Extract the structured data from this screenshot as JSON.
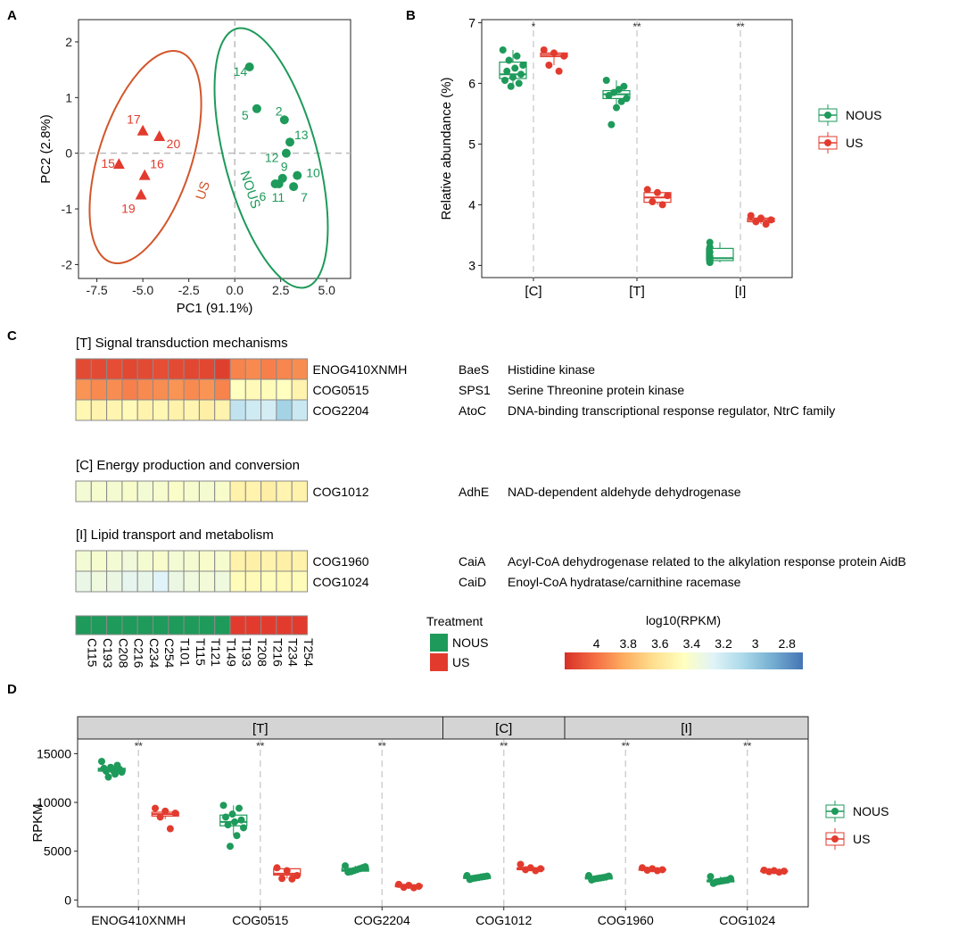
{
  "panel_labels": {
    "a": "A",
    "b": "B",
    "c": "C",
    "d": "D"
  },
  "colors": {
    "nous": "#1e9a5a",
    "us": "#e23b2e",
    "us_ellipse": "#d2562a",
    "ref": "#bbbbbb",
    "strip": "#d4d4d4"
  },
  "chart_data": [
    {
      "id": "A",
      "type": "scatter",
      "xlabel": "PC1 (91.1%)",
      "ylabel": "PC2 (2.8%)",
      "xlim": [
        -8.5,
        6.3
      ],
      "ylim": [
        -2.25,
        2.4
      ],
      "xticks": [
        -7.5,
        -5.0,
        -2.5,
        0.0,
        2.5,
        5.0
      ],
      "xtick_labels": [
        "-7.5",
        "-5.0",
        "-2.5",
        "0.0",
        "2.5",
        "5.0"
      ],
      "yticks": [
        -2,
        -1,
        0,
        1,
        2
      ],
      "ytick_labels": [
        "-2",
        "-1",
        "0",
        "1",
        "2"
      ],
      "groups": [
        {
          "name": "NOUS",
          "ellipse_label": "NOUS",
          "points": [
            {
              "label": "14",
              "x": 0.8,
              "y": 1.55
            },
            {
              "label": "5",
              "x": 1.2,
              "y": 0.8
            },
            {
              "label": "2",
              "x": 2.7,
              "y": 0.6
            },
            {
              "label": "13",
              "x": 3.0,
              "y": 0.2
            },
            {
              "label": "12",
              "x": 2.8,
              "y": 0.0
            },
            {
              "label": "10",
              "x": 3.4,
              "y": -0.4
            },
            {
              "label": "9",
              "x": 2.6,
              "y": -0.45
            },
            {
              "label": "6",
              "x": 2.2,
              "y": -0.55
            },
            {
              "label": "11",
              "x": 2.4,
              "y": -0.55
            },
            {
              "label": "7",
              "x": 3.2,
              "y": -0.6
            }
          ]
        },
        {
          "name": "US",
          "ellipse_label": "US",
          "points": [
            {
              "label": "17",
              "x": -5.0,
              "y": 0.4
            },
            {
              "label": "20",
              "x": -4.1,
              "y": 0.3
            },
            {
              "label": "15",
              "x": -6.3,
              "y": -0.2
            },
            {
              "label": "16",
              "x": -4.9,
              "y": -0.4
            },
            {
              "label": "19",
              "x": -5.1,
              "y": -0.75
            }
          ]
        }
      ]
    },
    {
      "id": "B",
      "type": "box",
      "ylabel": "Relative abundance (%)",
      "ylim": [
        2.8,
        7.05
      ],
      "yticks": [
        3,
        4,
        5,
        6,
        7
      ],
      "ytick_labels": [
        "3",
        "4",
        "5",
        "6",
        "7"
      ],
      "categories": [
        "[C]",
        "[T]",
        "[I]"
      ],
      "significance": [
        "*",
        "**",
        "**"
      ],
      "legend": [
        "NOUS",
        "US"
      ],
      "series": [
        {
          "name": "NOUS",
          "boxes": [
            {
              "q1": 6.08,
              "median": 6.15,
              "q3": 6.35,
              "min": 5.95,
              "max": 6.55,
              "points": [
                6.55,
                6.45,
                6.38,
                6.3,
                6.25,
                6.2,
                6.15,
                6.1,
                6.05,
                6.0,
                5.95
              ]
            },
            {
              "q1": 5.75,
              "median": 5.82,
              "q3": 5.88,
              "min": 5.55,
              "max": 6.05,
              "points": [
                6.05,
                5.95,
                5.9,
                5.85,
                5.8,
                5.75,
                5.7,
                5.6,
                5.32
              ]
            },
            {
              "q1": 3.08,
              "median": 3.12,
              "q3": 3.28,
              "min": 3.05,
              "max": 3.38,
              "points": [
                3.38,
                3.3,
                3.22,
                3.15,
                3.1,
                3.05,
                3.05
              ]
            }
          ]
        },
        {
          "name": "US",
          "boxes": [
            {
              "q1": 6.44,
              "median": 6.47,
              "q3": 6.5,
              "min": 6.3,
              "max": 6.55,
              "points": [
                6.55,
                6.5,
                6.45,
                6.3,
                6.2
              ]
            },
            {
              "q1": 4.04,
              "median": 4.12,
              "q3": 4.2,
              "min": 4.0,
              "max": 4.25,
              "points": [
                4.25,
                4.2,
                4.15,
                4.05,
                4.0
              ]
            },
            {
              "q1": 3.72,
              "median": 3.75,
              "q3": 3.78,
              "min": 3.68,
              "max": 3.82,
              "points": [
                3.82,
                3.78,
                3.75,
                3.72,
                3.68
              ]
            }
          ]
        }
      ]
    },
    {
      "id": "C",
      "type": "heatmap",
      "columns": [
        "C115",
        "C193",
        "C208",
        "C216",
        "C234",
        "C254",
        "T101",
        "T115",
        "T121",
        "T149",
        "T193",
        "T208",
        "T216",
        "T234",
        "T254"
      ],
      "column_groups": [
        "NOUS",
        "NOUS",
        "NOUS",
        "NOUS",
        "NOUS",
        "NOUS",
        "NOUS",
        "NOUS",
        "NOUS",
        "NOUS",
        "US",
        "US",
        "US",
        "US",
        "US"
      ],
      "blocks": [
        {
          "title": "[T] Signal transduction mechanisms",
          "rows": [
            {
              "id": "ENOG410XNMH",
              "gene": "BaeS",
              "desc": "Histidine kinase",
              "values": [
                4.12,
                4.12,
                4.11,
                4.13,
                4.12,
                4.11,
                4.12,
                4.13,
                4.13,
                4.15,
                3.95,
                3.93,
                3.96,
                3.94,
                3.92
              ]
            },
            {
              "id": "COG0515",
              "gene": "SPS1",
              "desc": "Serine Threonine protein kinase",
              "values": [
                3.9,
                3.93,
                3.92,
                3.96,
                3.93,
                3.92,
                3.9,
                3.93,
                3.9,
                3.95,
                3.45,
                3.48,
                3.47,
                3.45,
                3.52
              ]
            },
            {
              "id": "COG2204",
              "gene": "AtoC",
              "desc": "DNA-binding transcriptional response regulator, NtrC family",
              "values": [
                3.5,
                3.52,
                3.51,
                3.48,
                3.52,
                3.5,
                3.53,
                3.51,
                3.55,
                3.52,
                3.15,
                3.2,
                3.22,
                3.05,
                3.18
              ]
            }
          ]
        },
        {
          "title": "[C] Energy production and conversion",
          "rows": [
            {
              "id": "COG1012",
              "gene": "AdhE",
              "desc": "NAD-dependent aldehyde dehydrogenase",
              "values": [
                3.38,
                3.4,
                3.39,
                3.41,
                3.38,
                3.4,
                3.42,
                3.4,
                3.39,
                3.41,
                3.53,
                3.52,
                3.55,
                3.51,
                3.53
              ]
            }
          ]
        },
        {
          "title": "[I] Lipid transport and metabolism",
          "rows": [
            {
              "id": "COG1960",
              "gene": "CaiA",
              "desc": "Acyl-CoA dehydrogenase related to the alkylation response protein AidB",
              "values": [
                3.38,
                3.4,
                3.38,
                3.36,
                3.39,
                3.41,
                3.38,
                3.39,
                3.41,
                3.4,
                3.53,
                3.54,
                3.52,
                3.54,
                3.53
              ]
            },
            {
              "id": "COG1024",
              "gene": "CaiD",
              "desc": "Enoyl-CoA hydratase/carnithine racemase",
              "values": [
                3.32,
                3.35,
                3.33,
                3.3,
                3.31,
                3.26,
                3.33,
                3.35,
                3.37,
                3.35,
                3.47,
                3.48,
                3.46,
                3.48,
                3.47
              ]
            }
          ]
        }
      ],
      "treatment_legend": {
        "title": "Treatment",
        "items": [
          "NOUS",
          "US"
        ]
      },
      "colorbar": {
        "title": "log10(RPKM)",
        "min": 2.7,
        "max": 4.2,
        "ticks": [
          4,
          3.8,
          3.6,
          3.4,
          3.2,
          3,
          2.8
        ],
        "tick_labels": [
          "4",
          "3.8",
          "3.6",
          "3.4",
          "3.2",
          "3",
          "2.8"
        ],
        "colors": [
          "#d73027",
          "#f46d43",
          "#fdae61",
          "#fee090",
          "#ffffbf",
          "#e0f3f8",
          "#abd9e9",
          "#74add1",
          "#4575b4"
        ]
      }
    },
    {
      "id": "D",
      "type": "box",
      "ylabel": "RPKM",
      "ylim": [
        -700,
        16500
      ],
      "yticks": [
        0,
        5000,
        10000,
        15000
      ],
      "ytick_labels": [
        "0",
        "5000",
        "10000",
        "15000"
      ],
      "categories": [
        "ENOG410XNMH",
        "COG0515",
        "COG2204",
        "COG1012",
        "COG1960",
        "COG1024"
      ],
      "facets": [
        {
          "label": "[T]",
          "count": 3
        },
        {
          "label": "[C]",
          "count": 1
        },
        {
          "label": "[I]",
          "count": 2
        }
      ],
      "significance": [
        "**",
        "**",
        "**",
        "**",
        "**",
        "**"
      ],
      "legend": [
        "NOUS",
        "US"
      ],
      "series": [
        {
          "name": "NOUS",
          "boxes": [
            {
              "q1": 13200,
              "median": 13350,
              "q3": 13500,
              "min": 12900,
              "max": 13750,
              "points": [
                14200,
                13800,
                13600,
                13500,
                13400,
                13300,
                13200,
                13100,
                12900,
                12600
              ]
            },
            {
              "q1": 7600,
              "median": 8000,
              "q3": 8700,
              "min": 6600,
              "max": 9700,
              "points": [
                9700,
                9400,
                8800,
                8500,
                8200,
                8000,
                7700,
                7400,
                6600,
                5500
              ]
            },
            {
              "q1": 2950,
              "median": 3050,
              "q3": 3250,
              "min": 2800,
              "max": 3500,
              "points": [
                3500,
                3400,
                3300,
                3200,
                3100,
                3000,
                2900,
                2850
              ]
            },
            {
              "q1": 2200,
              "median": 2300,
              "q3": 2450,
              "min": 2100,
              "max": 2500,
              "points": [
                2500,
                2450,
                2400,
                2350,
                2300,
                2250,
                2200,
                2100
              ]
            },
            {
              "q1": 2150,
              "median": 2250,
              "q3": 2400,
              "min": 2050,
              "max": 2500,
              "points": [
                2500,
                2450,
                2350,
                2300,
                2250,
                2200,
                2150,
                2050
              ]
            },
            {
              "q1": 1850,
              "median": 1950,
              "q3": 2050,
              "min": 1700,
              "max": 2400,
              "points": [
                2400,
                2200,
                2050,
                2000,
                1950,
                1900,
                1850,
                1700
              ]
            }
          ]
        },
        {
          "name": "US",
          "boxes": [
            {
              "q1": 8600,
              "median": 8800,
              "q3": 9000,
              "min": 8300,
              "max": 9300,
              "points": [
                9400,
                9100,
                8900,
                8500,
                7300
              ]
            },
            {
              "q1": 2550,
              "median": 2700,
              "q3": 3200,
              "min": 2200,
              "max": 3250,
              "points": [
                3300,
                3000,
                2500,
                2200,
                2150
              ]
            },
            {
              "q1": 1350,
              "median": 1450,
              "q3": 1550,
              "min": 1250,
              "max": 1600,
              "points": [
                1600,
                1500,
                1400,
                1300,
                1250
              ]
            },
            {
              "q1": 3100,
              "median": 3200,
              "q3": 3300,
              "min": 3000,
              "max": 3500,
              "points": [
                3650,
                3300,
                3200,
                3100,
                3000
              ]
            },
            {
              "q1": 3050,
              "median": 3100,
              "q3": 3150,
              "min": 3000,
              "max": 3250,
              "points": [
                3300,
                3200,
                3100,
                3050,
                3000
              ]
            },
            {
              "q1": 2900,
              "median": 2950,
              "q3": 3000,
              "min": 2850,
              "max": 3050,
              "points": [
                3050,
                3000,
                2950,
                2900,
                2850
              ]
            }
          ]
        }
      ]
    }
  ]
}
